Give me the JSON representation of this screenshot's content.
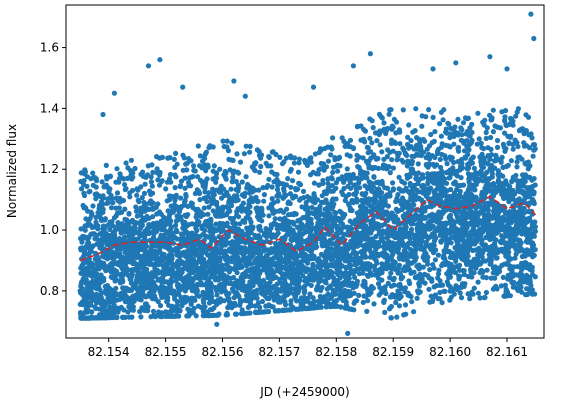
{
  "chart_data": {
    "type": "scatter",
    "title": "",
    "xlabel": "JD (+2459000)",
    "ylabel": "Normalized flux",
    "xlim": [
      82.15325,
      82.16165
    ],
    "ylim": [
      0.645,
      1.74
    ],
    "x_ticks": [
      "82.154",
      "82.155",
      "82.156",
      "82.157",
      "82.158",
      "82.159",
      "82.160",
      "82.161"
    ],
    "y_ticks": [
      "0.8",
      "1.0",
      "1.2",
      "1.4",
      "1.6"
    ],
    "grid": false,
    "legend": "none",
    "scatter_color": "#1f77b4",
    "binned_color": "#d62728",
    "scatter_points": {
      "count": 6000,
      "x_range": [
        82.1535,
        82.1615
      ],
      "note_values": "dense cloud of individual flux measurements; lower envelope ~0.72-0.85, upper envelope ~1.2-1.45 with outliers to 1.71"
    },
    "series": [
      {
        "type": "scatter",
        "x_start": 82.1535,
        "x_end": 82.1615,
        "lower_envelope": [
          [
            82.1535,
            0.72
          ],
          [
            82.156,
            0.73
          ],
          [
            82.158,
            0.76
          ],
          [
            82.159,
            0.72
          ],
          [
            82.16,
            0.78
          ],
          [
            82.1615,
            0.8
          ]
        ],
        "upper_envelope": [
          [
            82.1535,
            1.2
          ],
          [
            82.155,
            1.25
          ],
          [
            82.156,
            1.3
          ],
          [
            82.1575,
            1.23
          ],
          [
            82.1585,
            1.4
          ],
          [
            82.16,
            1.4
          ],
          [
            82.1615,
            1.4
          ]
        ],
        "outliers": [
          [
            82.1539,
            1.38
          ],
          [
            82.1541,
            1.45
          ],
          [
            82.1547,
            1.54
          ],
          [
            82.1549,
            1.56
          ],
          [
            82.1553,
            1.47
          ],
          [
            82.1562,
            1.49
          ],
          [
            82.1564,
            1.44
          ],
          [
            82.1576,
            1.47
          ],
          [
            82.1583,
            1.54
          ],
          [
            82.1586,
            1.58
          ],
          [
            82.1597,
            1.53
          ],
          [
            82.1601,
            1.55
          ],
          [
            82.1607,
            1.57
          ],
          [
            82.161,
            1.53
          ],
          [
            82.16142,
            1.71
          ],
          [
            82.16147,
            1.63
          ],
          [
            82.1582,
            0.66
          ],
          [
            82.1559,
            0.69
          ]
        ]
      },
      {
        "type": "line",
        "x": [
          82.1535,
          82.1538,
          82.1541,
          82.1544,
          82.1547,
          82.155,
          82.1553,
          82.1556,
          82.1558,
          82.1561,
          82.1564,
          82.1567,
          82.157,
          82.1573,
          82.1576,
          82.1578,
          82.1581,
          82.1584,
          82.1587,
          82.159,
          82.1593,
          82.1596,
          82.1598,
          82.1601,
          82.1604,
          82.1607,
          82.161,
          82.1613,
          82.1615
        ],
        "y": [
          0.9,
          0.92,
          0.95,
          0.96,
          0.96,
          0.96,
          0.95,
          0.97,
          0.94,
          1.0,
          0.97,
          0.95,
          0.97,
          0.93,
          0.96,
          1.01,
          0.95,
          1.02,
          1.06,
          1.0,
          1.05,
          1.1,
          1.08,
          1.07,
          1.08,
          1.11,
          1.07,
          1.09,
          1.05
        ]
      }
    ]
  }
}
